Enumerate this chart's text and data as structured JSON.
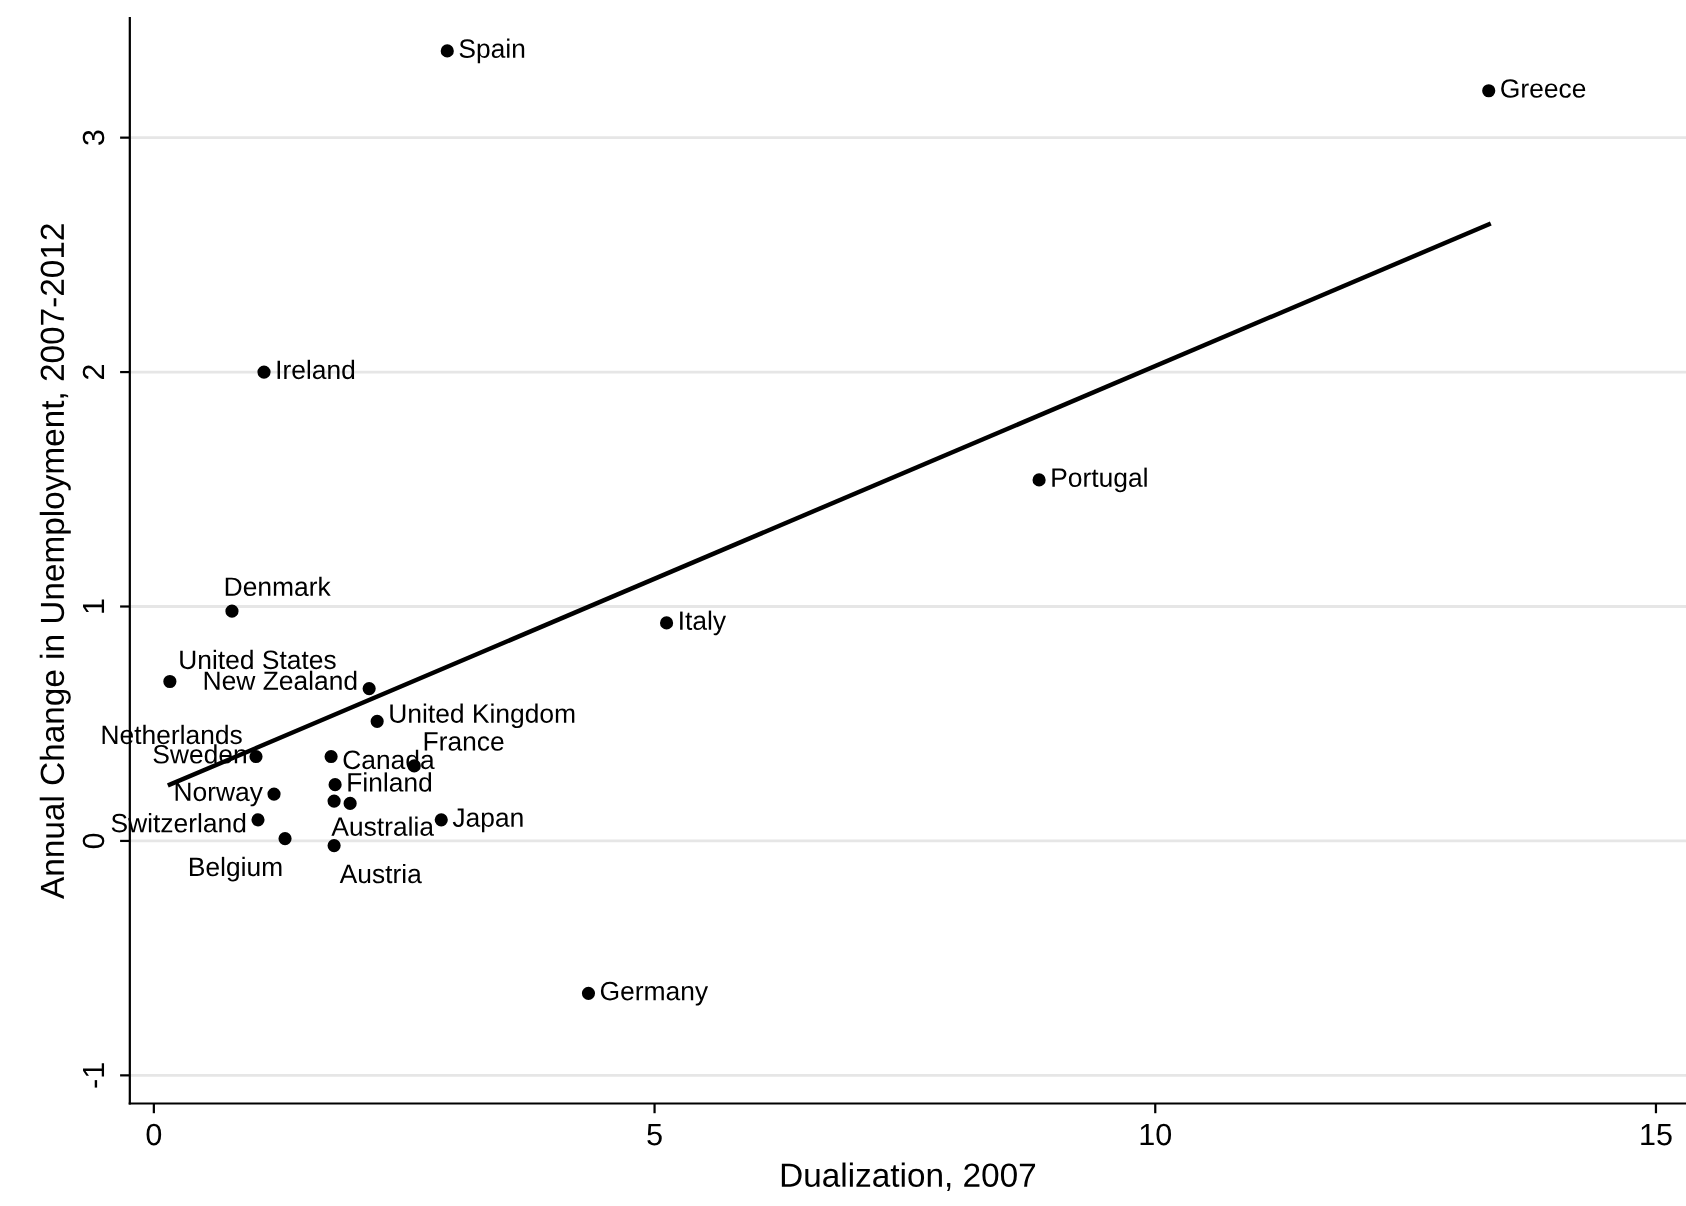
{
  "chart_data": {
    "type": "scatter",
    "xlabel": "Dualization, 2007",
    "ylabel": "Annual Change in Unemployment, 2007-2012",
    "series": [
      {
        "color": "#000000",
        "marker": "circle",
        "x": [
          2.93,
          13.33,
          1.1,
          8.84,
          0.78,
          5.12,
          0.16,
          2.15,
          2.23,
          1.02,
          1.77,
          2.6,
          1.96,
          1.8,
          1.2,
          1.04,
          1.31,
          1.8,
          2.87,
          4.34,
          1.81
        ],
        "values": [
          3.37,
          3.2,
          2.0,
          1.54,
          0.98,
          0.93,
          0.68,
          0.65,
          0.51,
          0.36,
          0.36,
          0.32,
          0.16,
          0.17,
          0.2,
          0.09,
          0.01,
          -0.02,
          0.09,
          -0.65,
          0.24
        ]
      },
      {
        "type": "line",
        "color": "#000000",
        "marker": "none",
        "line_style": "solid",
        "x": [
          0.16,
          13.33
        ],
        "values": [
          0.24,
          2.63
        ]
      }
    ],
    "annotations": [
      {
        "text": "Spain",
        "x": 2.93,
        "y": 3.37
      },
      {
        "text": "Greece",
        "x": 13.33,
        "y": 3.2
      },
      {
        "text": "Ireland",
        "x": 1.1,
        "y": 2.0
      },
      {
        "text": "Portugal",
        "x": 8.84,
        "y": 1.54
      },
      {
        "text": "Denmark",
        "x": 0.78,
        "y": 0.98
      },
      {
        "text": "Italy",
        "x": 5.12,
        "y": 0.93
      },
      {
        "text": "United States",
        "x": 0.16,
        "y": 0.68
      },
      {
        "text": "New Zealand",
        "x": 2.15,
        "y": 0.65
      },
      {
        "text": "United Kingdom",
        "x": 2.23,
        "y": 0.51
      },
      {
        "text": "Netherlands",
        "x": 1.02,
        "y": 0.36
      },
      {
        "text": "Sweden",
        "x": 1.02,
        "y": 0.36
      },
      {
        "text": "Canada",
        "x": 1.77,
        "y": 0.36
      },
      {
        "text": "France",
        "x": 2.6,
        "y": 0.32
      },
      {
        "text": "Finland",
        "x": 1.81,
        "y": 0.24
      },
      {
        "text": "Australia",
        "x": 1.8,
        "y": 0.17
      },
      {
        "text": "Norway",
        "x": 1.2,
        "y": 0.2
      },
      {
        "text": "Switzerland",
        "x": 1.04,
        "y": 0.09
      },
      {
        "text": "Belgium",
        "x": 1.31,
        "y": 0.01
      },
      {
        "text": "Austria",
        "x": 1.8,
        "y": -0.02
      },
      {
        "text": "Japan",
        "x": 2.87,
        "y": 0.09
      },
      {
        "text": "Germany",
        "x": 4.34,
        "y": -0.65
      }
    ],
    "xlim": [
      -0.24,
      15.3
    ],
    "ylim": [
      -1.12,
      3.51
    ],
    "xticks": [
      0,
      5,
      10,
      15
    ],
    "yticks": [
      -1,
      0,
      1,
      2,
      3
    ],
    "grid": "y",
    "legend": false
  }
}
